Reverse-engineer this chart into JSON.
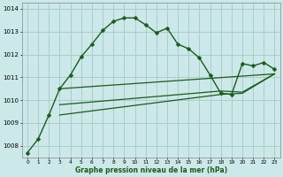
{
  "title": "Graphe pression niveau de la mer (hPa)",
  "background_color": "#cce8e8",
  "grid_color": "#aacece",
  "line_color": "#1a5c1a",
  "xlim": [
    -0.5,
    23.5
  ],
  "ylim": [
    1007.5,
    1014.25
  ],
  "yticks": [
    1008,
    1009,
    1010,
    1011,
    1012,
    1013,
    1014
  ],
  "xticks": [
    0,
    1,
    2,
    3,
    4,
    5,
    6,
    7,
    8,
    9,
    10,
    11,
    12,
    13,
    14,
    15,
    16,
    17,
    18,
    19,
    20,
    21,
    22,
    23
  ],
  "series_main": {
    "x": [
      0,
      1,
      2,
      3,
      4,
      5,
      6,
      7,
      8,
      9,
      10,
      11,
      12,
      13,
      14,
      15,
      16,
      17,
      18,
      19,
      20,
      21,
      22,
      23
    ],
    "y": [
      1007.7,
      1008.3,
      1009.35,
      1010.5,
      1011.1,
      1011.9,
      1012.45,
      1013.05,
      1013.45,
      1013.6,
      1013.6,
      1013.3,
      1012.95,
      1013.15,
      1012.45,
      1012.25,
      1011.85,
      1011.1,
      1010.3,
      1010.25,
      1011.6,
      1011.5,
      1011.65,
      1011.35
    ],
    "marker": "D",
    "markersize": 2.5,
    "linewidth": 1.0
  },
  "series_flat": [
    {
      "x": [
        3,
        23
      ],
      "y": [
        1010.5,
        1011.15
      ],
      "linewidth": 0.9
    },
    {
      "x": [
        3,
        18,
        20,
        23
      ],
      "y": [
        1009.8,
        1010.4,
        1010.35,
        1011.15
      ],
      "linewidth": 0.9
    },
    {
      "x": [
        3,
        18,
        20,
        23
      ],
      "y": [
        1009.35,
        1010.25,
        1010.3,
        1011.15
      ],
      "linewidth": 0.9
    }
  ]
}
